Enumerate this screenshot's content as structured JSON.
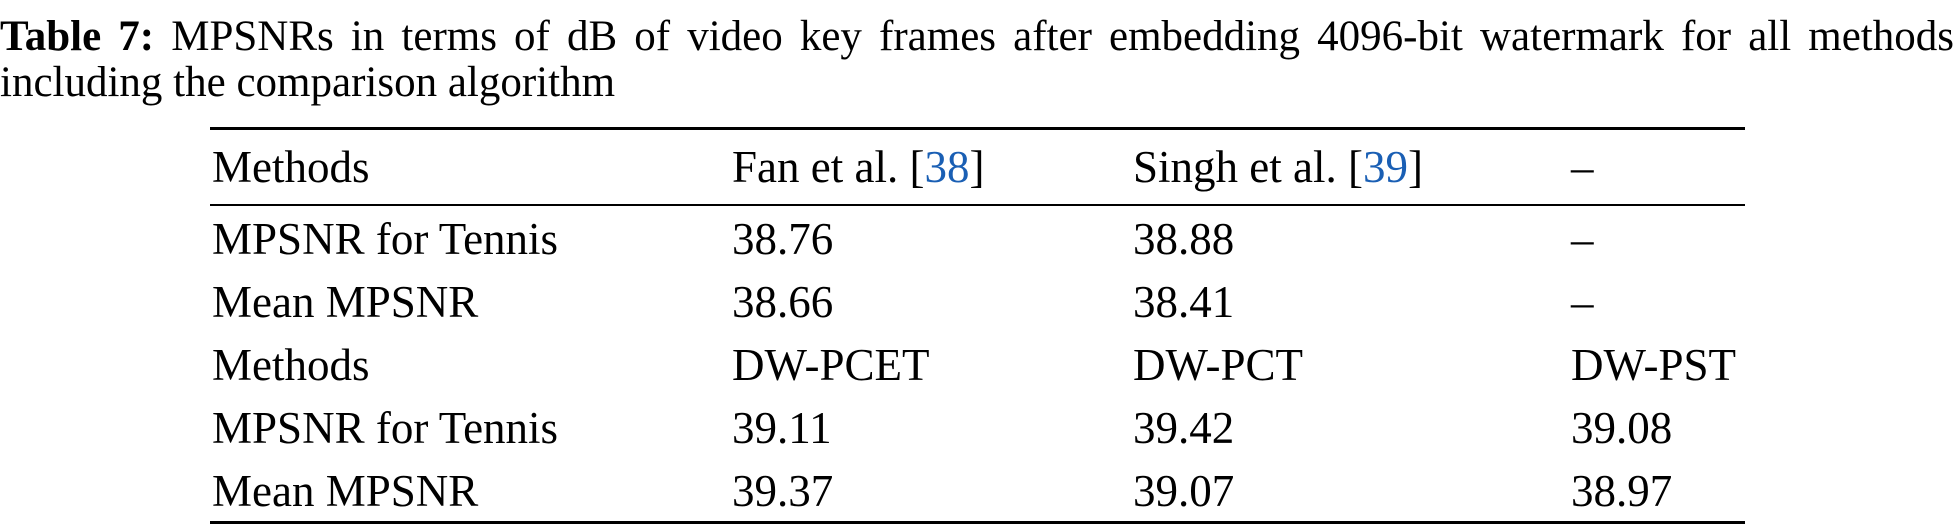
{
  "caption": {
    "label": "Table 7:",
    "text": "MPSNRs in terms of dB of video key frames after embedding 4096-bit watermark for all methods including the comparison algorithm"
  },
  "colors": {
    "reference_link": "#1a5fb4"
  },
  "table": {
    "header": {
      "col0": "Methods",
      "col1_name": "Fan et al. [",
      "col1_ref": "38",
      "col1_end": "]",
      "col2_name": "Singh et al. [",
      "col2_ref": "39",
      "col2_end": "]",
      "col3": "–"
    },
    "rows": [
      [
        "MPSNR for Tennis",
        "38.76",
        "38.88",
        "–"
      ],
      [
        "Mean MPSNR",
        "38.66",
        "38.41",
        "–"
      ],
      [
        "Methods",
        "DW-PCET",
        "DW-PCT",
        "DW-PST"
      ],
      [
        "MPSNR for Tennis",
        "39.11",
        "39.42",
        "39.08"
      ],
      [
        "Mean MPSNR",
        "39.37",
        "39.07",
        "38.97"
      ]
    ]
  }
}
